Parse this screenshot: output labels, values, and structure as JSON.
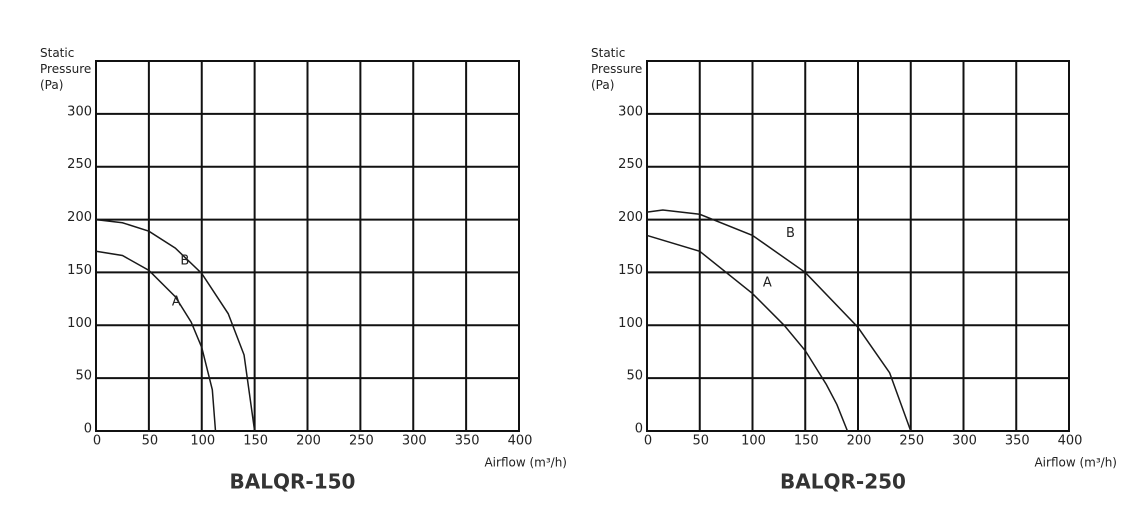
{
  "chart_data": [
    {
      "type": "line",
      "title": "BALQR-150",
      "x_label": "Airflow (m³/h)",
      "y_label": "Static Pressure (Pa)",
      "xlim": [
        0,
        400
      ],
      "xticks": [
        0,
        50,
        100,
        150,
        200,
        250,
        300,
        350,
        400
      ],
      "ylim": [
        0,
        350
      ],
      "yticks": [
        0,
        50,
        100,
        150,
        200,
        250,
        300
      ],
      "grid": true,
      "series": [
        {
          "name": "A",
          "color": "#1a1a1a",
          "x": [
            0,
            25,
            50,
            75,
            90,
            100,
            110,
            113
          ],
          "values": [
            170,
            166,
            152,
            127,
            103,
            79,
            39,
            0
          ]
        },
        {
          "name": "B",
          "color": "#1a1a1a",
          "x": [
            0,
            25,
            50,
            75,
            100,
            125,
            140,
            150
          ],
          "values": [
            200,
            197,
            189,
            173,
            149,
            111,
            72,
            0
          ]
        }
      ]
    },
    {
      "type": "line",
      "title": "BALQR-250",
      "x_label": "Airflow (m³/h)",
      "y_label": "Static Pressure (Pa)",
      "xlim": [
        0,
        400
      ],
      "xticks": [
        0,
        50,
        100,
        150,
        200,
        250,
        300,
        350,
        400
      ],
      "ylim": [
        0,
        350
      ],
      "yticks": [
        0,
        50,
        100,
        150,
        200,
        250,
        300
      ],
      "grid": true,
      "series": [
        {
          "name": "A",
          "color": "#1a1a1a",
          "x": [
            0,
            50,
            100,
            130,
            150,
            170,
            180,
            190
          ],
          "values": [
            185,
            170,
            130,
            100,
            76,
            44,
            25,
            0
          ]
        },
        {
          "name": "B",
          "color": "#1a1a1a",
          "x": [
            0,
            15,
            50,
            100,
            150,
            200,
            230,
            250
          ],
          "values": [
            207,
            209,
            205,
            185,
            150,
            98,
            55,
            0
          ]
        }
      ]
    }
  ]
}
